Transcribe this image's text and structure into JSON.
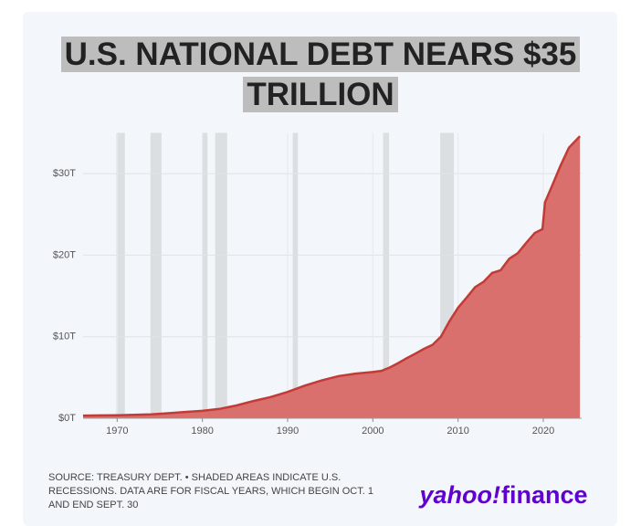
{
  "chart_data": {
    "type": "area",
    "title": "U.S. NATIONAL DEBT NEARS $35 TRILLION",
    "source": "SOURCE: TREASURY DEPT. • SHADED AREAS INDICATE U.S. RECESSIONS. DATA ARE FOR FISCAL YEARS, WHICH BEGIN OCT. 1 AND END SEPT. 30",
    "logo": [
      "yahoo!",
      "finance"
    ],
    "x": [
      1966,
      1968,
      1970,
      1972,
      1974,
      1976,
      1978,
      1980,
      1982,
      1984,
      1986,
      1988,
      1990,
      1992,
      1994,
      1996,
      1998,
      2000,
      2001,
      2002,
      2003,
      2004,
      2005,
      2006,
      2007,
      2008,
      2009,
      2010,
      2011,
      2012,
      2013,
      2014,
      2015,
      2016,
      2017,
      2018,
      2019,
      2019.9,
      2020.2,
      2021,
      2022,
      2023,
      2024.3
    ],
    "series": [
      {
        "name": "Debt",
        "color": "#c23b36",
        "fill": "#d9706d",
        "values": [
          0.32,
          0.35,
          0.37,
          0.43,
          0.48,
          0.62,
          0.77,
          0.91,
          1.14,
          1.57,
          2.12,
          2.6,
          3.23,
          4.0,
          4.64,
          5.18,
          5.48,
          5.67,
          5.81,
          6.23,
          6.78,
          7.38,
          7.93,
          8.51,
          9.01,
          10.02,
          11.91,
          13.56,
          14.79,
          16.07,
          16.74,
          17.82,
          18.15,
          19.57,
          20.24,
          21.52,
          22.72,
          23.2,
          26.5,
          28.43,
          30.93,
          33.17,
          34.6
        ]
      }
    ],
    "recessions": [
      [
        1969.9,
        1970.9
      ],
      [
        1973.9,
        1975.2
      ],
      [
        1980.0,
        1980.6
      ],
      [
        1981.5,
        1982.9
      ],
      [
        1990.6,
        1991.2
      ],
      [
        2001.2,
        2001.9
      ],
      [
        2007.9,
        2009.5
      ]
    ],
    "recession_color": "#dcdfe2",
    "xlim": [
      1966,
      2024.5
    ],
    "ylim": [
      0,
      35
    ],
    "xticks": [
      1970,
      1980,
      1990,
      2000,
      2010,
      2020
    ],
    "yticks": [
      {
        "value": 0,
        "label": "$0T"
      },
      {
        "value": 10,
        "label": "$10T"
      },
      {
        "value": 20,
        "label": "$20T"
      },
      {
        "value": 30,
        "label": "$30T"
      }
    ],
    "grid": true
  }
}
